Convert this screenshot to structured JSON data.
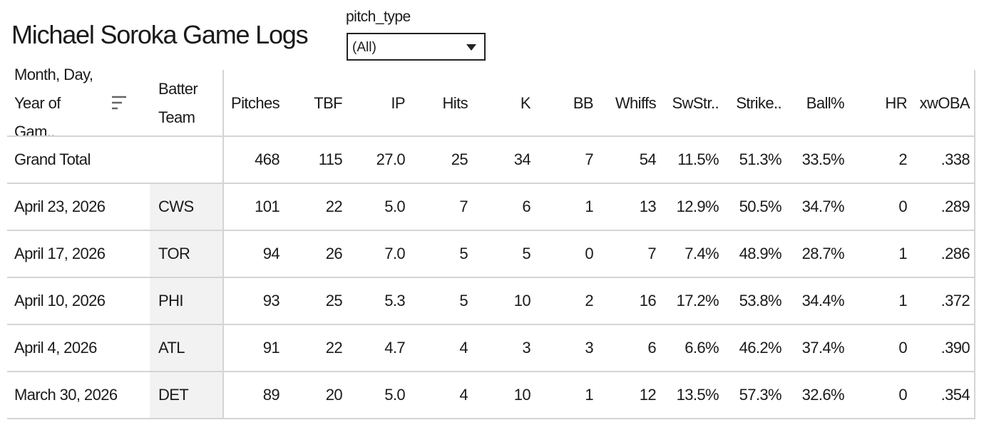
{
  "title": "Michael Soroka Game Logs",
  "filter": {
    "label": "pitch_type",
    "value": "(All)"
  },
  "table": {
    "headers": [
      "Month, Day, Year of Gam..",
      "Batter Team",
      "Pitches",
      "TBF",
      "IP",
      "Hits",
      "K",
      "BB",
      "Whiffs",
      "SwStr..",
      "Strike..",
      "Ball%",
      "HR",
      "xwOBA"
    ],
    "total": {
      "label": "Grand Total",
      "values": [
        "468",
        "115",
        "27.0",
        "25",
        "34",
        "7",
        "54",
        "11.5%",
        "51.3%",
        "33.5%",
        "2",
        ".338"
      ]
    },
    "rows": [
      {
        "date": "April 23, 2026",
        "team": "CWS",
        "values": [
          "101",
          "22",
          "5.0",
          "7",
          "6",
          "1",
          "13",
          "12.9%",
          "50.5%",
          "34.7%",
          "0",
          ".289"
        ]
      },
      {
        "date": "April 17, 2026",
        "team": "TOR",
        "values": [
          "94",
          "26",
          "7.0",
          "5",
          "5",
          "0",
          "7",
          "7.4%",
          "48.9%",
          "28.7%",
          "1",
          ".286"
        ]
      },
      {
        "date": "April 10, 2026",
        "team": "PHI",
        "values": [
          "93",
          "25",
          "5.3",
          "5",
          "10",
          "2",
          "16",
          "17.2%",
          "53.8%",
          "34.4%",
          "1",
          ".372"
        ]
      },
      {
        "date": "April 4, 2026",
        "team": "ATL",
        "values": [
          "91",
          "22",
          "4.7",
          "4",
          "3",
          "3",
          "6",
          "6.6%",
          "46.2%",
          "37.4%",
          "0",
          ".390"
        ]
      },
      {
        "date": "March 30, 2026",
        "team": "DET",
        "values": [
          "89",
          "20",
          "5.0",
          "4",
          "10",
          "1",
          "12",
          "13.5%",
          "57.3%",
          "32.6%",
          "0",
          ".354"
        ]
      }
    ]
  }
}
